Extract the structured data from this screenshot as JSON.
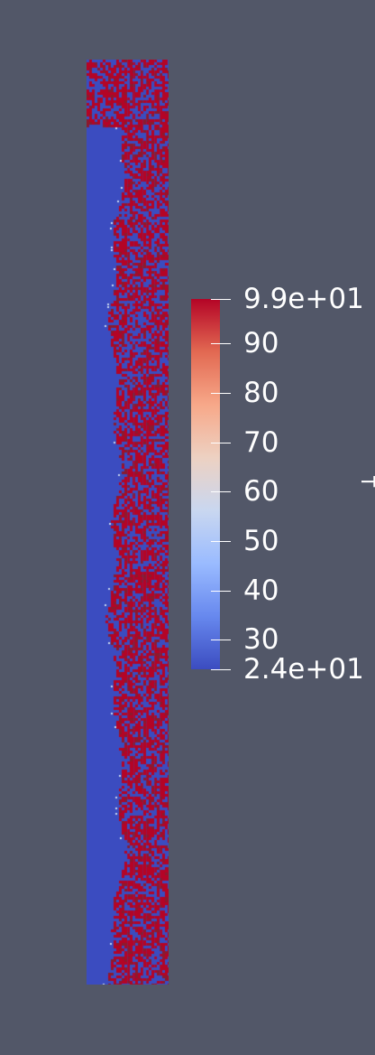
{
  "viewer": {
    "background": "#525768"
  },
  "field": {
    "colors": {
      "low": "#3b4cc0",
      "high": "#b40426",
      "mid_dark": "#8b1a2e"
    }
  },
  "colorbar": {
    "title": "T",
    "min_label": "2.4e+01",
    "max_label": "9.9e+01",
    "range": [
      24,
      99
    ],
    "ticks": [
      {
        "value": 99,
        "label": "9.9e+01"
      },
      {
        "value": 90,
        "label": "90"
      },
      {
        "value": 80,
        "label": "80"
      },
      {
        "value": 70,
        "label": "70"
      },
      {
        "value": 60,
        "label": "60"
      },
      {
        "value": 50,
        "label": "50"
      },
      {
        "value": 40,
        "label": "40"
      },
      {
        "value": 30,
        "label": "30"
      },
      {
        "value": 24,
        "label": "2.4e+01"
      }
    ],
    "colormap": [
      "#3b4cc0",
      "#6788ee",
      "#9abbff",
      "#c9d7f0",
      "#edd1c2",
      "#f7a889",
      "#e26952",
      "#b40426"
    ]
  }
}
